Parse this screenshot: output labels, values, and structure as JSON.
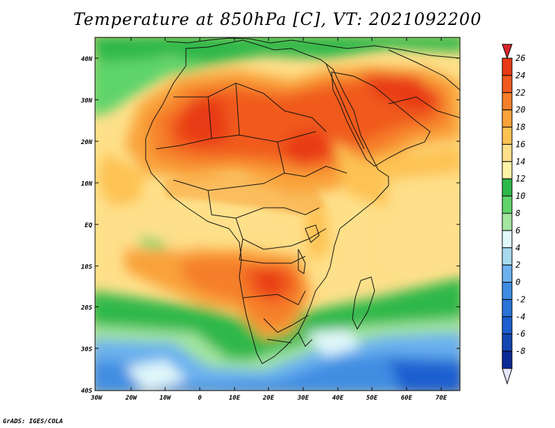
{
  "title": "Temperature at 850hPa [C], VT: 2021092200",
  "footer": "GrADS: IGES/COLA",
  "map": {
    "lat_labels": [
      "40N",
      "30N",
      "20N",
      "10N",
      "EQ",
      "10S",
      "20S",
      "30S",
      "40S"
    ],
    "lon_labels": [
      "30W",
      "20W",
      "10W",
      "0",
      "10E",
      "20E",
      "30E",
      "40E",
      "50E",
      "60E",
      "70E"
    ]
  },
  "colorbar": {
    "levels": [
      {
        "label": "26",
        "color": "#e83a14"
      },
      {
        "label": "24",
        "color": "#f05a1e"
      },
      {
        "label": "22",
        "color": "#f57f2a"
      },
      {
        "label": "20",
        "color": "#f9a23a"
      },
      {
        "label": "18",
        "color": "#fdc253"
      },
      {
        "label": "16",
        "color": "#fee08a"
      },
      {
        "label": "14",
        "color": "#fff3a6"
      },
      {
        "label": "12",
        "color": "#2db84a"
      },
      {
        "label": "10",
        "color": "#5fd46a"
      },
      {
        "label": "8",
        "color": "#a3e5a1"
      },
      {
        "label": "6",
        "color": "#e1f8fa"
      },
      {
        "label": "4",
        "color": "#a8daf0"
      },
      {
        "label": "2",
        "color": "#6ab1ee"
      },
      {
        "label": "0",
        "color": "#3f8de2"
      },
      {
        "label": "-2",
        "color": "#2a73d8"
      },
      {
        "label": "-4",
        "color": "#1d5ed0"
      },
      {
        "label": "-6",
        "color": "#1446b4"
      },
      {
        "label": "-8",
        "color": "#0d2a96"
      }
    ],
    "top_color": "#d8262b",
    "bottom_color": "#e6e6ff"
  }
}
